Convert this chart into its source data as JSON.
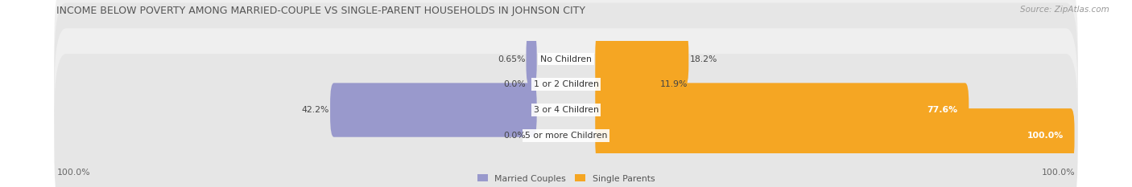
{
  "title": "INCOME BELOW POVERTY AMONG MARRIED-COUPLE VS SINGLE-PARENT HOUSEHOLDS IN JOHNSON CITY",
  "source": "Source: ZipAtlas.com",
  "categories": [
    "No Children",
    "1 or 2 Children",
    "3 or 4 Children",
    "5 or more Children"
  ],
  "married_values": [
    0.65,
    0.0,
    42.2,
    0.0
  ],
  "single_values": [
    18.2,
    11.9,
    77.6,
    100.0
  ],
  "married_color": "#9999cc",
  "single_color": "#f5a623",
  "row_bg_color_odd": "#efefef",
  "row_bg_color_even": "#e6e6e6",
  "max_value": 100.0,
  "title_fontsize": 9.0,
  "label_fontsize": 7.8,
  "value_fontsize": 7.8,
  "source_fontsize": 7.5,
  "axis_label": "100.0%",
  "fig_width": 14.06,
  "fig_height": 2.33,
  "dpi": 100
}
